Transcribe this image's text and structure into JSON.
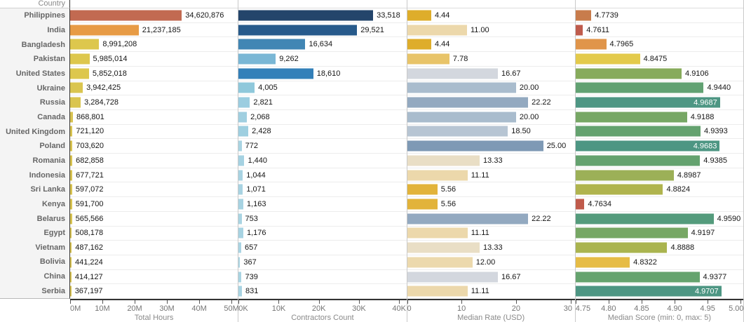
{
  "header": {
    "country_label": "Country"
  },
  "chart_data": {
    "type": "bar",
    "orientation": "horizontal",
    "grid": "row-separators",
    "legend": "none",
    "categories": [
      "Philippines",
      "India",
      "Bangladesh",
      "Pakistan",
      "United States",
      "Ukraine",
      "Russia",
      "Canada",
      "United Kingdom",
      "Poland",
      "Romania",
      "Indonesia",
      "Sri Lanka",
      "Kenya",
      "Belarus",
      "Egypt",
      "Vietnam",
      "Bolivia",
      "China",
      "Serbia"
    ],
    "panels": [
      {
        "id": "total-hours",
        "title": "Total Hours",
        "domain": [
          0,
          52000000
        ],
        "ticks": [
          {
            "label": "0M",
            "value": 0
          },
          {
            "label": "10M",
            "value": 10000000
          },
          {
            "label": "20M",
            "value": 20000000
          },
          {
            "label": "30M",
            "value": 30000000
          },
          {
            "label": "40M",
            "value": 40000000
          },
          {
            "label": "50M",
            "value": 50000000
          }
        ],
        "series": [
          {
            "value": 34620876,
            "label": "34,620,876",
            "color": "#c26a51",
            "label_inside": false
          },
          {
            "value": 21237185,
            "label": "21,237,185",
            "color": "#e79b45",
            "label_inside": false
          },
          {
            "value": 8991208,
            "label": "8,991,208",
            "color": "#ddc74d",
            "label_inside": false
          },
          {
            "value": 5985014,
            "label": "5,985,014",
            "color": "#ddc74d",
            "label_inside": false
          },
          {
            "value": 5852018,
            "label": "5,852,018",
            "color": "#ddc74d",
            "label_inside": false
          },
          {
            "value": 3942425,
            "label": "3,942,425",
            "color": "#dac54f",
            "label_inside": false
          },
          {
            "value": 3284728,
            "label": "3,284,728",
            "color": "#dac54f",
            "label_inside": false
          },
          {
            "value": 868801,
            "label": "868,801",
            "color": "#d8c352",
            "label_inside": false
          },
          {
            "value": 721120,
            "label": "721,120",
            "color": "#d8c352",
            "label_inside": false
          },
          {
            "value": 703620,
            "label": "703,620",
            "color": "#d8c352",
            "label_inside": false
          },
          {
            "value": 682858,
            "label": "682,858",
            "color": "#d8c352",
            "label_inside": false
          },
          {
            "value": 677721,
            "label": "677,721",
            "color": "#d8c352",
            "label_inside": false
          },
          {
            "value": 597072,
            "label": "597,072",
            "color": "#d8c352",
            "label_inside": false
          },
          {
            "value": 591700,
            "label": "591,700",
            "color": "#d8c352",
            "label_inside": false
          },
          {
            "value": 565566,
            "label": "565,566",
            "color": "#d8c352",
            "label_inside": false
          },
          {
            "value": 508178,
            "label": "508,178",
            "color": "#d8c352",
            "label_inside": false
          },
          {
            "value": 487162,
            "label": "487,162",
            "color": "#d8c352",
            "label_inside": false
          },
          {
            "value": 441224,
            "label": "441,224",
            "color": "#d8c352",
            "label_inside": false
          },
          {
            "value": 414127,
            "label": "414,127",
            "color": "#d8c352",
            "label_inside": false
          },
          {
            "value": 367197,
            "label": "367,197",
            "color": "#d8c352",
            "label_inside": false
          }
        ]
      },
      {
        "id": "contractors-count",
        "title": "Contractors Count",
        "domain": [
          0,
          41800
        ],
        "ticks": [
          {
            "label": "0K",
            "value": 0
          },
          {
            "label": "10K",
            "value": 10000
          },
          {
            "label": "20K",
            "value": 20000
          },
          {
            "label": "30K",
            "value": 30000
          },
          {
            "label": "40K",
            "value": 40000
          }
        ],
        "series": [
          {
            "value": 33518,
            "label": "33,518",
            "color": "#24456b",
            "label_inside": false
          },
          {
            "value": 29521,
            "label": "29,521",
            "color": "#275a8b",
            "label_inside": false
          },
          {
            "value": 16634,
            "label": "16,634",
            "color": "#4186b4",
            "label_inside": false
          },
          {
            "value": 9262,
            "label": "9,262",
            "color": "#7ab7d5",
            "label_inside": false
          },
          {
            "value": 18610,
            "label": "18,610",
            "color": "#3380b9",
            "label_inside": false
          },
          {
            "value": 4005,
            "label": "4,005",
            "color": "#8fc8db",
            "label_inside": false
          },
          {
            "value": 2821,
            "label": "2,821",
            "color": "#9bcde0",
            "label_inside": false
          },
          {
            "value": 2068,
            "label": "2,068",
            "color": "#a0cfe0",
            "label_inside": false
          },
          {
            "value": 2428,
            "label": "2,428",
            "color": "#9ecfe0",
            "label_inside": false
          },
          {
            "value": 772,
            "label": "772",
            "color": "#a9d4e2",
            "label_inside": false
          },
          {
            "value": 1440,
            "label": "1,440",
            "color": "#a5d2e2",
            "label_inside": false
          },
          {
            "value": 1044,
            "label": "1,044",
            "color": "#a8d3e2",
            "label_inside": false
          },
          {
            "value": 1071,
            "label": "1,071",
            "color": "#a8d3e2",
            "label_inside": false
          },
          {
            "value": 1163,
            "label": "1,163",
            "color": "#a7d3e2",
            "label_inside": false
          },
          {
            "value": 753,
            "label": "753",
            "color": "#a9d4e2",
            "label_inside": false
          },
          {
            "value": 1176,
            "label": "1,176",
            "color": "#a7d3e2",
            "label_inside": false
          },
          {
            "value": 657,
            "label": "657",
            "color": "#aad4e3",
            "label_inside": false
          },
          {
            "value": 367,
            "label": "367",
            "color": "#abd5e3",
            "label_inside": false
          },
          {
            "value": 739,
            "label": "739",
            "color": "#a9d4e2",
            "label_inside": false
          },
          {
            "value": 831,
            "label": "831",
            "color": "#a9d4e2",
            "label_inside": false
          }
        ]
      },
      {
        "id": "median-rate-usd",
        "title": "Median Rate (USD)",
        "domain": [
          0,
          30.8
        ],
        "ticks": [
          {
            "label": "0",
            "value": 0
          },
          {
            "label": "10",
            "value": 10
          },
          {
            "label": "20",
            "value": 20
          },
          {
            "label": "30",
            "value": 30
          }
        ],
        "series": [
          {
            "value": 4.44,
            "label": "4.44",
            "color": "#dead2b",
            "label_inside": false
          },
          {
            "value": 11.0,
            "label": "11.00",
            "color": "#ecd8ab",
            "label_inside": false
          },
          {
            "value": 4.44,
            "label": "4.44",
            "color": "#dead2b",
            "label_inside": false
          },
          {
            "value": 7.78,
            "label": "7.78",
            "color": "#e8c469",
            "label_inside": false
          },
          {
            "value": 16.67,
            "label": "16.67",
            "color": "#d3d7de",
            "label_inside": false
          },
          {
            "value": 20.0,
            "label": "20.00",
            "color": "#a9bccd",
            "label_inside": false
          },
          {
            "value": 22.22,
            "label": "22.22",
            "color": "#93a9c0",
            "label_inside": false
          },
          {
            "value": 20.0,
            "label": "20.00",
            "color": "#a9bccd",
            "label_inside": false
          },
          {
            "value": 18.5,
            "label": "18.50",
            "color": "#b7c5d3",
            "label_inside": false
          },
          {
            "value": 25.0,
            "label": "25.00",
            "color": "#7e99b5",
            "label_inside": false
          },
          {
            "value": 13.33,
            "label": "13.33",
            "color": "#e9dec5",
            "label_inside": false
          },
          {
            "value": 11.11,
            "label": "11.11",
            "color": "#ecd8ab",
            "label_inside": false
          },
          {
            "value": 5.56,
            "label": "5.56",
            "color": "#e2b33a",
            "label_inside": false
          },
          {
            "value": 5.56,
            "label": "5.56",
            "color": "#e2b33a",
            "label_inside": false
          },
          {
            "value": 22.22,
            "label": "22.22",
            "color": "#93a9c0",
            "label_inside": false
          },
          {
            "value": 11.11,
            "label": "11.11",
            "color": "#ecd8ab",
            "label_inside": false
          },
          {
            "value": 13.33,
            "label": "13.33",
            "color": "#e9dec5",
            "label_inside": false
          },
          {
            "value": 12.0,
            "label": "12.00",
            "color": "#ecd9ad",
            "label_inside": false
          },
          {
            "value": 16.67,
            "label": "16.67",
            "color": "#d3d7de",
            "label_inside": false
          },
          {
            "value": 11.11,
            "label": "11.11",
            "color": "#ecd8ab",
            "label_inside": false
          }
        ]
      },
      {
        "id": "median-score",
        "title": "Median Score (min: 0, max: 5)",
        "domain": [
          4.75,
          5.004
        ],
        "ticks": [
          {
            "label": "4.75",
            "value": 4.75
          },
          {
            "label": "4.80",
            "value": 4.8
          },
          {
            "label": "4.85",
            "value": 4.85
          },
          {
            "label": "4.90",
            "value": 4.9
          },
          {
            "label": "4.95",
            "value": 4.95
          },
          {
            "label": "5.00",
            "value": 5.0
          }
        ],
        "series": [
          {
            "value": 4.7739,
            "label": "4.7739",
            "color": "#c87c4c",
            "label_inside": false
          },
          {
            "value": 4.7611,
            "label": "4.7611",
            "color": "#bf5b4c",
            "label_inside": false
          },
          {
            "value": 4.7965,
            "label": "4.7965",
            "color": "#e0954a",
            "label_inside": false
          },
          {
            "value": 4.8475,
            "label": "4.8475",
            "color": "#e3ca4b",
            "label_inside": false
          },
          {
            "value": 4.9106,
            "label": "4.9106",
            "color": "#87ab5b",
            "label_inside": false
          },
          {
            "value": 4.944,
            "label": "4.9440",
            "color": "#61a172",
            "label_inside": false
          },
          {
            "value": 4.9687,
            "label": "4.9687",
            "color": "#4d9683",
            "label_inside": true
          },
          {
            "value": 4.9188,
            "label": "4.9188",
            "color": "#77a765",
            "label_inside": false
          },
          {
            "value": 4.9393,
            "label": "4.9393",
            "color": "#64a26f",
            "label_inside": false
          },
          {
            "value": 4.9683,
            "label": "4.9683",
            "color": "#4d9683",
            "label_inside": true
          },
          {
            "value": 4.9385,
            "label": "4.9385",
            "color": "#64a26f",
            "label_inside": false
          },
          {
            "value": 4.8987,
            "label": "4.8987",
            "color": "#9cb057",
            "label_inside": false
          },
          {
            "value": 4.8824,
            "label": "4.8824",
            "color": "#b0b44e",
            "label_inside": false
          },
          {
            "value": 4.7634,
            "label": "4.7634",
            "color": "#c05b4b",
            "label_inside": false
          },
          {
            "value": 4.959,
            "label": "4.9590",
            "color": "#549b7c",
            "label_inside": false
          },
          {
            "value": 4.9197,
            "label": "4.9197",
            "color": "#76a764",
            "label_inside": false
          },
          {
            "value": 4.8888,
            "label": "4.8888",
            "color": "#aab44f",
            "label_inside": false
          },
          {
            "value": 4.8322,
            "label": "4.8322",
            "color": "#e6bc45",
            "label_inside": false
          },
          {
            "value": 4.9377,
            "label": "4.9377",
            "color": "#65a36e",
            "label_inside": false
          },
          {
            "value": 4.9707,
            "label": "4.9707",
            "color": "#4d9683",
            "label_inside": true
          }
        ]
      }
    ]
  }
}
